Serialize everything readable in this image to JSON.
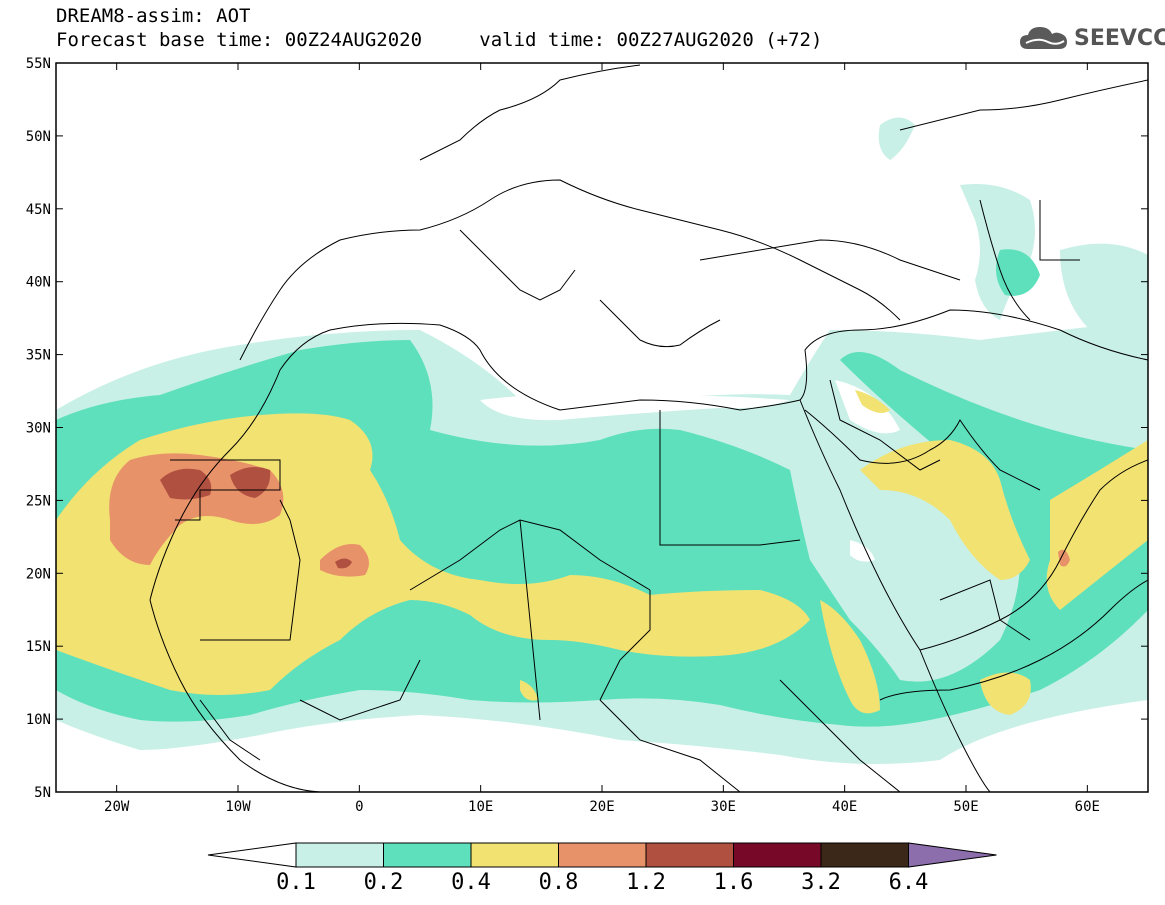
{
  "title": {
    "line1": "DREAM8-assim: AOT",
    "base_label": "Forecast base time: 00Z24AUG2020",
    "valid_label": "valid time: 00Z27AUG2020 (+72)"
  },
  "logo": {
    "text": "SEEVCCC",
    "icon": "cloud-icon"
  },
  "map": {
    "lon_range": [
      -25,
      65
    ],
    "lat_range": [
      5,
      55
    ],
    "lat_ticks": [
      "5N",
      "10N",
      "15N",
      "20N",
      "25N",
      "30N",
      "35N",
      "40N",
      "45N",
      "50N",
      "55N"
    ],
    "lon_ticks": [
      "20W",
      "10W",
      "0",
      "10E",
      "20E",
      "30E",
      "40E",
      "50E",
      "60E"
    ],
    "lon_tick_values": [
      -20,
      -10,
      0,
      10,
      20,
      30,
      40,
      50,
      60
    ],
    "lat_tick_values": [
      5,
      10,
      15,
      20,
      25,
      30,
      35,
      40,
      45,
      50,
      55
    ]
  },
  "colorbar": {
    "labels": [
      "0.1",
      "0.2",
      "0.4",
      "0.8",
      "1.2",
      "1.6",
      "3.2",
      "6.4"
    ],
    "colors": [
      "#c8f0e6",
      "#5ee0bc",
      "#f2e272",
      "#e8926a",
      "#b05040",
      "#780828",
      "#3c2818",
      "#8c6eac"
    ],
    "below_color": "#ffffff"
  }
}
